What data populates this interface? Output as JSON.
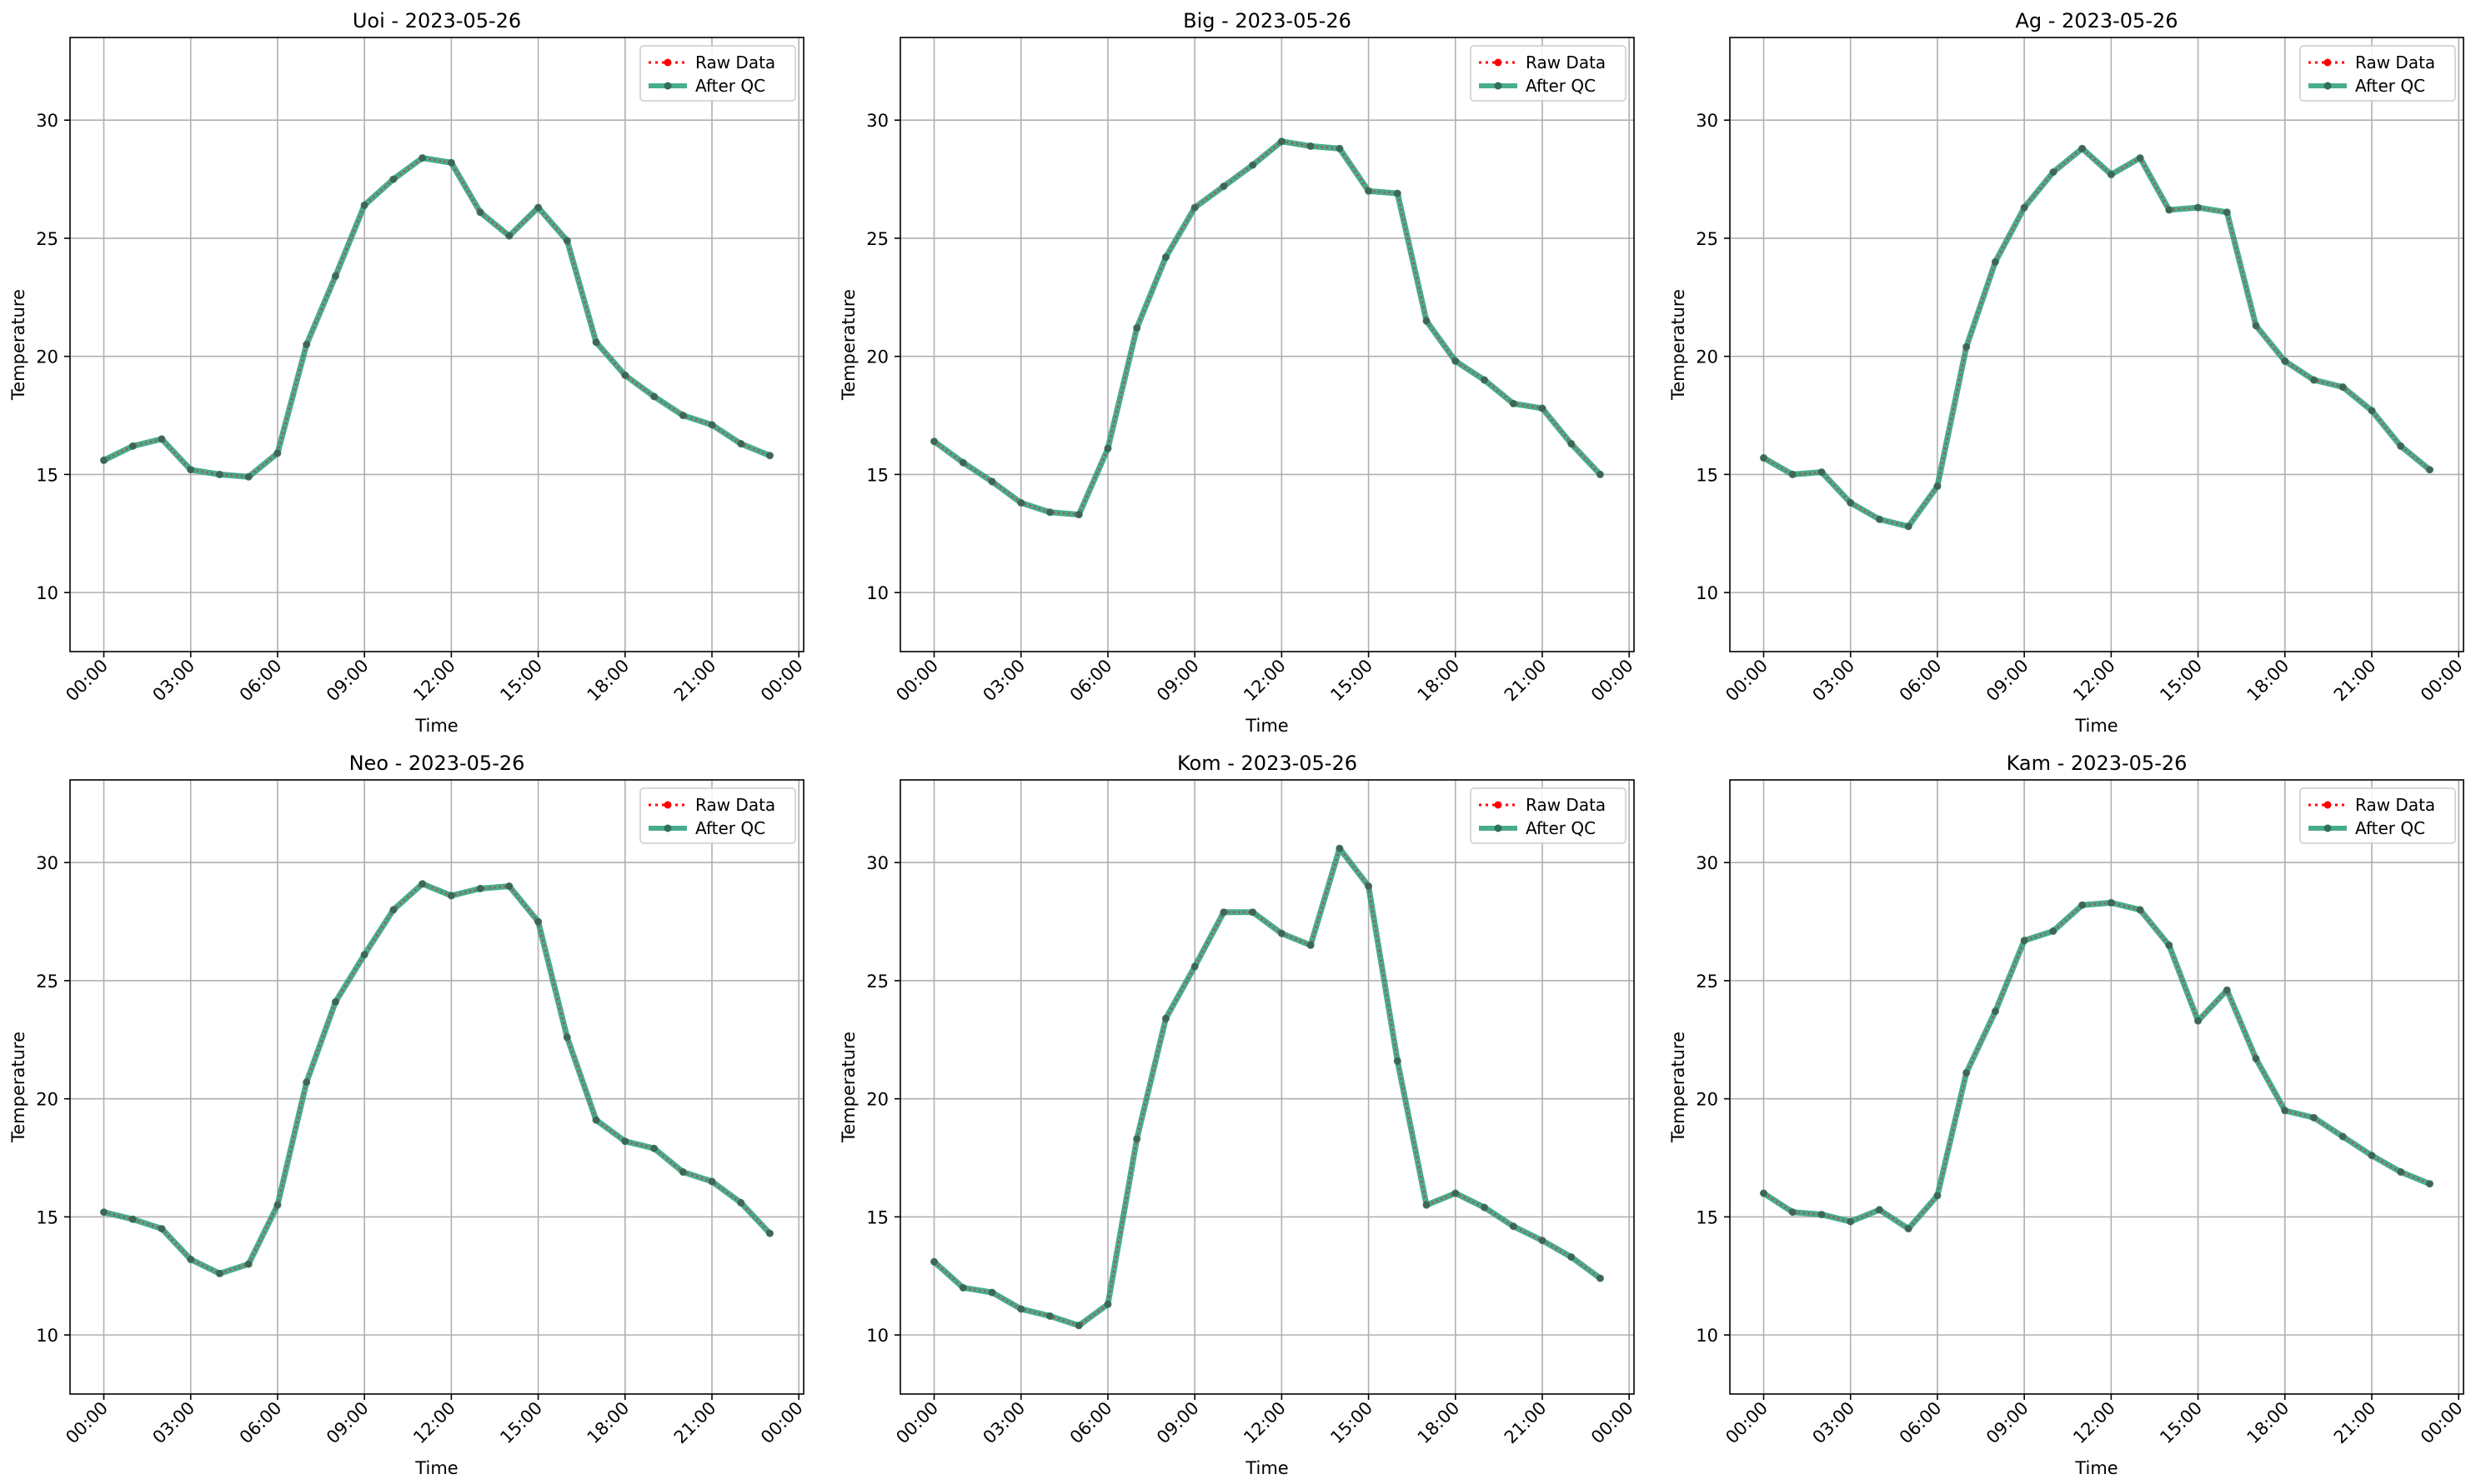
{
  "figure": {
    "xticks": [
      "00:00",
      "03:00",
      "06:00",
      "09:00",
      "12:00",
      "15:00",
      "18:00",
      "21:00",
      "00:00"
    ],
    "yticks": [
      10,
      15,
      20,
      25,
      30
    ],
    "colors": {
      "raw": "#ff0000",
      "qc": "#2a9d7a",
      "grid": "#b0b0b0"
    },
    "legend": {
      "raw": "Raw Data",
      "qc": "After QC",
      "placement": "upper-right"
    }
  },
  "chart_data": [
    {
      "type": "line",
      "title": "Uoi - 2023-05-26",
      "xlabel": "Time",
      "ylabel": "Temperature",
      "x": [
        "00:00",
        "01:00",
        "02:00",
        "03:00",
        "04:00",
        "05:00",
        "06:00",
        "07:00",
        "08:00",
        "09:00",
        "10:00",
        "11:00",
        "12:00",
        "13:00",
        "14:00",
        "15:00",
        "16:00",
        "17:00",
        "18:00",
        "19:00",
        "20:00",
        "21:00",
        "22:00",
        "23:00"
      ],
      "xlim": [
        "2023-05-25 22:50",
        "2023-05-27 00:10"
      ],
      "ylim": [
        7.5,
        33.5
      ],
      "grid": true,
      "series": [
        {
          "name": "Raw Data",
          "values": [
            15.6,
            16.2,
            16.5,
            15.2,
            15.0,
            14.9,
            15.9,
            20.5,
            23.4,
            26.4,
            27.5,
            28.4,
            28.2,
            26.1,
            25.1,
            26.3,
            24.9,
            20.6,
            19.2,
            18.3,
            17.5,
            17.1,
            16.3,
            15.8
          ]
        },
        {
          "name": "After QC",
          "values": [
            15.6,
            16.2,
            16.5,
            15.2,
            15.0,
            14.9,
            15.9,
            20.5,
            23.4,
            26.4,
            27.5,
            28.4,
            28.2,
            26.1,
            25.1,
            26.3,
            24.9,
            20.6,
            19.2,
            18.3,
            17.5,
            17.1,
            16.3,
            15.8
          ]
        }
      ]
    },
    {
      "type": "line",
      "title": "Big - 2023-05-26",
      "xlabel": "Time",
      "ylabel": "Temperature",
      "x": [
        "00:00",
        "01:00",
        "02:00",
        "03:00",
        "04:00",
        "05:00",
        "06:00",
        "07:00",
        "08:00",
        "09:00",
        "10:00",
        "11:00",
        "12:00",
        "13:00",
        "14:00",
        "15:00",
        "16:00",
        "17:00",
        "18:00",
        "19:00",
        "20:00",
        "21:00",
        "22:00",
        "23:00"
      ],
      "xlim": [
        "2023-05-25 22:50",
        "2023-05-27 00:10"
      ],
      "ylim": [
        7.5,
        33.5
      ],
      "grid": true,
      "series": [
        {
          "name": "Raw Data",
          "values": [
            16.4,
            15.5,
            14.7,
            13.8,
            13.4,
            13.3,
            16.1,
            21.2,
            24.2,
            26.3,
            27.2,
            28.1,
            29.1,
            28.9,
            28.8,
            27.0,
            26.9,
            21.5,
            19.8,
            19.0,
            18.0,
            17.8,
            16.3,
            15.0
          ]
        },
        {
          "name": "After QC",
          "values": [
            16.4,
            15.5,
            14.7,
            13.8,
            13.4,
            13.3,
            16.1,
            21.2,
            24.2,
            26.3,
            27.2,
            28.1,
            29.1,
            28.9,
            28.8,
            27.0,
            26.9,
            21.5,
            19.8,
            19.0,
            18.0,
            17.8,
            16.3,
            15.0
          ]
        }
      ]
    },
    {
      "type": "line",
      "title": "Ag - 2023-05-26",
      "xlabel": "Time",
      "ylabel": "Temperature",
      "x": [
        "00:00",
        "01:00",
        "02:00",
        "03:00",
        "04:00",
        "05:00",
        "06:00",
        "07:00",
        "08:00",
        "09:00",
        "10:00",
        "11:00",
        "12:00",
        "13:00",
        "14:00",
        "15:00",
        "16:00",
        "17:00",
        "18:00",
        "19:00",
        "20:00",
        "21:00",
        "22:00",
        "23:00"
      ],
      "xlim": [
        "2023-05-25 22:50",
        "2023-05-27 00:10"
      ],
      "ylim": [
        7.5,
        33.5
      ],
      "grid": true,
      "series": [
        {
          "name": "Raw Data",
          "values": [
            15.7,
            15.0,
            15.1,
            13.8,
            13.1,
            12.8,
            14.5,
            20.4,
            24.0,
            26.3,
            27.8,
            28.8,
            27.7,
            28.4,
            26.2,
            26.3,
            26.1,
            21.3,
            19.8,
            19.0,
            18.7,
            17.7,
            16.2,
            15.2
          ]
        },
        {
          "name": "After QC",
          "values": [
            15.7,
            15.0,
            15.1,
            13.8,
            13.1,
            12.8,
            14.5,
            20.4,
            24.0,
            26.3,
            27.8,
            28.8,
            27.7,
            28.4,
            26.2,
            26.3,
            26.1,
            21.3,
            19.8,
            19.0,
            18.7,
            17.7,
            16.2,
            15.2
          ]
        }
      ]
    },
    {
      "type": "line",
      "title": "Neo - 2023-05-26",
      "xlabel": "Time",
      "ylabel": "Temperature",
      "x": [
        "00:00",
        "01:00",
        "02:00",
        "03:00",
        "04:00",
        "05:00",
        "06:00",
        "07:00",
        "08:00",
        "09:00",
        "10:00",
        "11:00",
        "12:00",
        "13:00",
        "14:00",
        "15:00",
        "16:00",
        "17:00",
        "18:00",
        "19:00",
        "20:00",
        "21:00",
        "22:00",
        "23:00"
      ],
      "xlim": [
        "2023-05-25 22:50",
        "2023-05-27 00:10"
      ],
      "ylim": [
        7.5,
        33.5
      ],
      "grid": true,
      "series": [
        {
          "name": "Raw Data",
          "values": [
            15.2,
            14.9,
            14.5,
            13.2,
            12.6,
            13.0,
            15.5,
            20.7,
            24.1,
            26.1,
            28.0,
            29.1,
            28.6,
            28.9,
            29.0,
            27.5,
            22.6,
            19.1,
            18.2,
            17.9,
            16.9,
            16.5,
            15.6,
            14.3
          ]
        },
        {
          "name": "After QC",
          "values": [
            15.2,
            14.9,
            14.5,
            13.2,
            12.6,
            13.0,
            15.5,
            20.7,
            24.1,
            26.1,
            28.0,
            29.1,
            28.6,
            28.9,
            29.0,
            27.5,
            22.6,
            19.1,
            18.2,
            17.9,
            16.9,
            16.5,
            15.6,
            14.3
          ]
        }
      ]
    },
    {
      "type": "line",
      "title": "Kom - 2023-05-26",
      "xlabel": "Time",
      "ylabel": "Temperature",
      "x": [
        "00:00",
        "01:00",
        "02:00",
        "03:00",
        "04:00",
        "05:00",
        "06:00",
        "07:00",
        "08:00",
        "09:00",
        "10:00",
        "11:00",
        "12:00",
        "13:00",
        "14:00",
        "15:00",
        "16:00",
        "17:00",
        "18:00",
        "19:00",
        "20:00",
        "21:00",
        "22:00",
        "23:00"
      ],
      "xlim": [
        "2023-05-25 22:50",
        "2023-05-27 00:10"
      ],
      "ylim": [
        7.5,
        33.5
      ],
      "grid": true,
      "series": [
        {
          "name": "Raw Data",
          "values": [
            13.1,
            12.0,
            11.8,
            11.1,
            10.8,
            10.4,
            11.3,
            18.3,
            23.4,
            25.6,
            27.9,
            27.9,
            27.0,
            26.5,
            30.6,
            29.0,
            21.6,
            15.5,
            16.0,
            15.4,
            14.6,
            14.0,
            13.3,
            12.4
          ]
        },
        {
          "name": "After QC",
          "values": [
            13.1,
            12.0,
            11.8,
            11.1,
            10.8,
            10.4,
            11.3,
            18.3,
            23.4,
            25.6,
            27.9,
            27.9,
            27.0,
            26.5,
            30.6,
            29.0,
            21.6,
            15.5,
            16.0,
            15.4,
            14.6,
            14.0,
            13.3,
            12.4
          ]
        }
      ]
    },
    {
      "type": "line",
      "title": "Kam - 2023-05-26",
      "xlabel": "Time",
      "ylabel": "Temperature",
      "x": [
        "00:00",
        "01:00",
        "02:00",
        "03:00",
        "04:00",
        "05:00",
        "06:00",
        "07:00",
        "08:00",
        "09:00",
        "10:00",
        "11:00",
        "12:00",
        "13:00",
        "14:00",
        "15:00",
        "16:00",
        "17:00",
        "18:00",
        "19:00",
        "20:00",
        "21:00",
        "22:00",
        "23:00"
      ],
      "xlim": [
        "2023-05-25 22:50",
        "2023-05-27 00:10"
      ],
      "ylim": [
        7.5,
        33.5
      ],
      "grid": true,
      "series": [
        {
          "name": "Raw Data",
          "values": [
            16.0,
            15.2,
            15.1,
            14.8,
            15.3,
            14.5,
            15.9,
            21.1,
            23.7,
            26.7,
            27.1,
            28.2,
            28.3,
            28.0,
            26.5,
            23.3,
            24.6,
            21.7,
            19.5,
            19.2,
            18.4,
            17.6,
            16.9,
            16.4
          ]
        },
        {
          "name": "After QC",
          "values": [
            16.0,
            15.2,
            15.1,
            14.8,
            15.3,
            14.5,
            15.9,
            21.1,
            23.7,
            26.7,
            27.1,
            28.2,
            28.3,
            28.0,
            26.5,
            23.3,
            24.6,
            21.7,
            19.5,
            19.2,
            18.4,
            17.6,
            16.9,
            16.4
          ]
        }
      ]
    }
  ]
}
